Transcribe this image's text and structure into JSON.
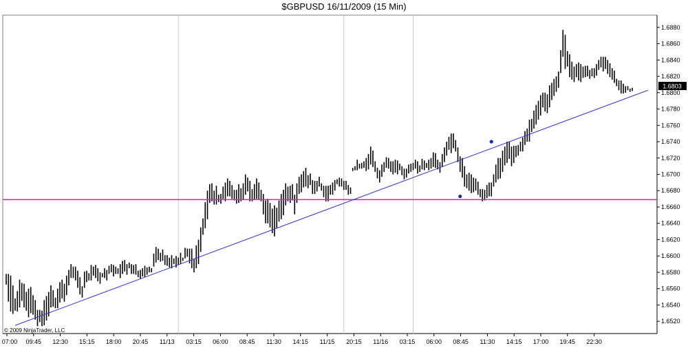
{
  "chart_data": {
    "type": "ohlc",
    "title": "$GBPUSD  16/11/2009 (15 Min)",
    "copyright": "© 2009 NinjaTrader, LLC",
    "ylim": [
      1.6505,
      1.6895
    ],
    "y_ticks": [
      "1.6520",
      "1.6540",
      "1.6560",
      "1.6580",
      "1.6600",
      "1.6620",
      "1.6640",
      "1.6660",
      "1.6680",
      "1.6700",
      "1.6720",
      "1.6740",
      "1.6760",
      "1.6780",
      "1.6800",
      "1.6820",
      "1.6840",
      "1.6860",
      "1.6880"
    ],
    "x_ticks": [
      "07:00",
      "09:45",
      "12:30",
      "15:15",
      "18:00",
      "20:45",
      "11/13",
      "03:15",
      "06:00",
      "08:45",
      "11:30",
      "14:15",
      "11/15",
      "20:15",
      "11/16",
      "03:15",
      "06:00",
      "08:45",
      "11:30",
      "14:15",
      "17:00",
      "19:45",
      "22:30"
    ],
    "last_price": "1.6803",
    "grid": "vertical day separators",
    "colors": {
      "bars": "#000000",
      "trendline": "#3333cc",
      "horizontal_line": "#e020c0",
      "markers": "#1a2e9e",
      "grid": "#c8c8c8"
    },
    "horizontal_line_value": 1.6669,
    "trendline": [
      [
        4,
        1.6515
      ],
      [
        287,
        1.6803
      ]
    ],
    "markers": [
      [
        203,
        1.6673
      ],
      [
        217,
        1.674
      ]
    ],
    "day_separators": [
      77,
      151,
      182
    ],
    "bar_ranges": [
      [
        1.6565,
        1.6578
      ],
      [
        1.6544,
        1.6578
      ],
      [
        1.6532,
        1.6576
      ],
      [
        1.6529,
        1.6564
      ],
      [
        1.6533,
        1.6548
      ],
      [
        1.6532,
        1.6557
      ],
      [
        1.6537,
        1.6571
      ],
      [
        1.6545,
        1.6567
      ],
      [
        1.6537,
        1.6566
      ],
      [
        1.6533,
        1.6556
      ],
      [
        1.6525,
        1.656
      ],
      [
        1.653,
        1.6562
      ],
      [
        1.6528,
        1.6552
      ],
      [
        1.6522,
        1.6546
      ],
      [
        1.6514,
        1.6534
      ],
      [
        1.6519,
        1.6534
      ],
      [
        1.6514,
        1.6533
      ],
      [
        1.6515,
        1.6546
      ],
      [
        1.6521,
        1.6551
      ],
      [
        1.6526,
        1.6556
      ],
      [
        1.6537,
        1.6564
      ],
      [
        1.6538,
        1.6558
      ],
      [
        1.6536,
        1.6549
      ],
      [
        1.6536,
        1.656
      ],
      [
        1.6543,
        1.6568
      ],
      [
        1.6548,
        1.6571
      ],
      [
        1.6544,
        1.6566
      ],
      [
        1.6552,
        1.6576
      ],
      [
        1.6564,
        1.6583
      ],
      [
        1.6573,
        1.659
      ],
      [
        1.6573,
        1.6587
      ],
      [
        1.657,
        1.6587
      ],
      [
        1.6561,
        1.6582
      ],
      [
        1.6553,
        1.6574
      ],
      [
        1.6549,
        1.6563
      ],
      [
        1.6561,
        1.6581
      ],
      [
        1.6568,
        1.6582
      ],
      [
        1.657,
        1.6579
      ],
      [
        1.657,
        1.6589
      ],
      [
        1.6576,
        1.6587
      ],
      [
        1.6573,
        1.6589
      ],
      [
        1.6569,
        1.6585
      ],
      [
        1.6566,
        1.658
      ],
      [
        1.6574,
        1.6579
      ],
      [
        1.6573,
        1.6585
      ],
      [
        1.657,
        1.6583
      ],
      [
        1.6578,
        1.6588
      ],
      [
        1.658,
        1.659
      ],
      [
        1.6575,
        1.6589
      ],
      [
        1.6578,
        1.6587
      ],
      [
        1.6578,
        1.6585
      ],
      [
        1.6573,
        1.659
      ],
      [
        1.6578,
        1.6594
      ],
      [
        1.6581,
        1.6595
      ],
      [
        1.6577,
        1.659
      ],
      [
        1.6585,
        1.6592
      ],
      [
        1.6578,
        1.659
      ],
      [
        1.6578,
        1.6589
      ],
      [
        1.6577,
        1.659
      ],
      [
        1.6574,
        1.6582
      ],
      [
        1.6572,
        1.6583
      ],
      [
        1.6575,
        1.6585
      ],
      [
        1.6574,
        1.6588
      ],
      [
        1.6577,
        1.6586
      ],
      [
        1.658,
        1.6587
      ],
      [
        1.658,
        1.6585
      ],
      [
        1.6587,
        1.6603
      ],
      [
        1.6592,
        1.6611
      ],
      [
        1.6595,
        1.6609
      ],
      [
        1.6593,
        1.6604
      ],
      [
        1.6594,
        1.6608
      ],
      [
        1.6589,
        1.6601
      ],
      [
        1.6588,
        1.6601
      ],
      [
        1.6586,
        1.6598
      ],
      [
        1.6585,
        1.6601
      ],
      [
        1.659,
        1.6597
      ],
      [
        1.6586,
        1.66
      ],
      [
        1.6589,
        1.6598
      ],
      [
        1.659,
        1.6604
      ],
      [
        1.6594,
        1.6598
      ],
      [
        1.6597,
        1.661
      ],
      [
        1.6599,
        1.6609
      ],
      [
        1.6591,
        1.6609
      ],
      [
        1.6585,
        1.6609
      ],
      [
        1.658,
        1.6596
      ],
      [
        1.6585,
        1.6613
      ],
      [
        1.659,
        1.662
      ],
      [
        1.6605,
        1.6635
      ],
      [
        1.6626,
        1.6646
      ],
      [
        1.6634,
        1.6666
      ],
      [
        1.6645,
        1.668
      ],
      [
        1.6665,
        1.6688
      ],
      [
        1.6667,
        1.6689
      ],
      [
        1.6663,
        1.668
      ],
      [
        1.6663,
        1.6686
      ],
      [
        1.6666,
        1.6675
      ],
      [
        1.6664,
        1.6676
      ],
      [
        1.667,
        1.6685
      ],
      [
        1.6667,
        1.669
      ],
      [
        1.6673,
        1.6695
      ],
      [
        1.6673,
        1.6692
      ],
      [
        1.667,
        1.6687
      ],
      [
        1.6668,
        1.6681
      ],
      [
        1.6664,
        1.6681
      ],
      [
        1.6665,
        1.6688
      ],
      [
        1.6667,
        1.6683
      ],
      [
        1.6669,
        1.6689
      ],
      [
        1.6675,
        1.67
      ],
      [
        1.6679,
        1.6696
      ],
      [
        1.6667,
        1.6692
      ],
      [
        1.6667,
        1.6682
      ],
      [
        1.6669,
        1.6688
      ],
      [
        1.667,
        1.6695
      ],
      [
        1.6669,
        1.669
      ],
      [
        1.6667,
        1.6681
      ],
      [
        1.6651,
        1.6676
      ],
      [
        1.664,
        1.6668
      ],
      [
        1.664,
        1.667
      ],
      [
        1.6635,
        1.6665
      ],
      [
        1.6628,
        1.6658
      ],
      [
        1.6624,
        1.6662
      ],
      [
        1.6634,
        1.6659
      ],
      [
        1.6642,
        1.6668
      ],
      [
        1.6645,
        1.6676
      ],
      [
        1.665,
        1.6681
      ],
      [
        1.6662,
        1.6689
      ],
      [
        1.6667,
        1.6685
      ],
      [
        1.6665,
        1.6686
      ],
      [
        1.6668,
        1.6688
      ],
      [
        1.6651,
        1.6675
      ],
      [
        1.6665,
        1.6689
      ],
      [
        1.6676,
        1.6697
      ],
      [
        1.6678,
        1.67
      ],
      [
        1.6684,
        1.6704
      ],
      [
        1.6685,
        1.6708
      ],
      [
        1.6683,
        1.6699
      ],
      [
        1.6687,
        1.6701
      ],
      [
        1.6676,
        1.6693
      ],
      [
        1.6676,
        1.6692
      ],
      [
        1.6679,
        1.6692
      ],
      [
        1.6685,
        1.6697
      ],
      [
        1.668,
        1.6689
      ],
      [
        1.6672,
        1.6686
      ],
      [
        1.6667,
        1.6686
      ],
      [
        1.6667,
        1.6686
      ],
      [
        1.6675,
        1.6687
      ],
      [
        1.6675,
        1.669
      ],
      [
        1.668,
        1.6693
      ],
      [
        1.6688,
        1.6694
      ],
      [
        1.6685,
        1.6696
      ],
      [
        1.6685,
        1.6695
      ],
      [
        1.6681,
        1.6692
      ],
      [
        1.6681,
        1.6692
      ],
      [
        1.6675,
        1.6687
      ],
      [
        1.6676,
        1.6684
      ],
      [
        1.6704,
        1.6708
      ],
      [
        1.6705,
        1.671
      ],
      [
        1.6705,
        1.6718
      ],
      [
        1.6707,
        1.6713
      ],
      [
        1.6707,
        1.6714
      ],
      [
        1.6708,
        1.6716
      ],
      [
        1.6704,
        1.672
      ],
      [
        1.6706,
        1.6725
      ],
      [
        1.6712,
        1.6734
      ],
      [
        1.6709,
        1.6729
      ],
      [
        1.6703,
        1.6716
      ],
      [
        1.6695,
        1.6708
      ],
      [
        1.669,
        1.6705
      ],
      [
        1.6697,
        1.6712
      ],
      [
        1.6703,
        1.6715
      ],
      [
        1.6708,
        1.6721
      ],
      [
        1.6707,
        1.672
      ],
      [
        1.6703,
        1.6716
      ],
      [
        1.67,
        1.6716
      ],
      [
        1.6702,
        1.6718
      ],
      [
        1.67,
        1.6717
      ],
      [
        1.6705,
        1.6713
      ],
      [
        1.6699,
        1.671
      ],
      [
        1.6694,
        1.6707
      ],
      [
        1.6696,
        1.6707
      ],
      [
        1.6701,
        1.6712
      ],
      [
        1.6703,
        1.6713
      ],
      [
        1.6705,
        1.6714
      ],
      [
        1.6707,
        1.6718
      ],
      [
        1.6701,
        1.6716
      ],
      [
        1.6703,
        1.6711
      ],
      [
        1.6706,
        1.6719
      ],
      [
        1.6705,
        1.6717
      ],
      [
        1.6708,
        1.6714
      ],
      [
        1.6705,
        1.6718
      ],
      [
        1.6707,
        1.672
      ],
      [
        1.6709,
        1.6727
      ],
      [
        1.6708,
        1.6726
      ],
      [
        1.6706,
        1.6718
      ],
      [
        1.6702,
        1.6715
      ],
      [
        1.6709,
        1.6725
      ],
      [
        1.6715,
        1.6733
      ],
      [
        1.6723,
        1.674
      ],
      [
        1.673,
        1.6746
      ],
      [
        1.6726,
        1.675
      ],
      [
        1.6732,
        1.675
      ],
      [
        1.6728,
        1.6742
      ],
      [
        1.6715,
        1.6733
      ],
      [
        1.6703,
        1.6722
      ],
      [
        1.6696,
        1.672
      ],
      [
        1.6685,
        1.671
      ],
      [
        1.6683,
        1.67
      ],
      [
        1.668,
        1.6702
      ],
      [
        1.6677,
        1.67
      ],
      [
        1.6678,
        1.6696
      ],
      [
        1.668,
        1.6695
      ],
      [
        1.6675,
        1.6691
      ],
      [
        1.6672,
        1.6682
      ],
      [
        1.6667,
        1.6682
      ],
      [
        1.6668,
        1.6681
      ],
      [
        1.6671,
        1.6687
      ],
      [
        1.6673,
        1.669
      ],
      [
        1.6673,
        1.669
      ],
      [
        1.6685,
        1.67
      ],
      [
        1.669,
        1.6712
      ],
      [
        1.6694,
        1.672
      ],
      [
        1.6695,
        1.672
      ],
      [
        1.6703,
        1.6729
      ],
      [
        1.6711,
        1.6734
      ],
      [
        1.6714,
        1.674
      ],
      [
        1.6719,
        1.674
      ],
      [
        1.671,
        1.6734
      ],
      [
        1.6714,
        1.6735
      ],
      [
        1.6721,
        1.6735
      ],
      [
        1.6723,
        1.6736
      ],
      [
        1.6728,
        1.674
      ],
      [
        1.6728,
        1.6745
      ],
      [
        1.6736,
        1.6753
      ],
      [
        1.674,
        1.6756
      ],
      [
        1.674,
        1.6767
      ],
      [
        1.6752,
        1.6768
      ],
      [
        1.6756,
        1.6778
      ],
      [
        1.6761,
        1.6785
      ],
      [
        1.6767,
        1.679
      ],
      [
        1.6772,
        1.6797
      ],
      [
        1.6782,
        1.68
      ],
      [
        1.6777,
        1.68
      ],
      [
        1.6775,
        1.6798
      ],
      [
        1.6782,
        1.6809
      ],
      [
        1.6791,
        1.6812
      ],
      [
        1.6796,
        1.6817
      ],
      [
        1.6801,
        1.682
      ],
      [
        1.6806,
        1.6826
      ],
      [
        1.6824,
        1.6852
      ],
      [
        1.6844,
        1.6877
      ],
      [
        1.6829,
        1.6871
      ],
      [
        1.6832,
        1.6851
      ],
      [
        1.6819,
        1.6847
      ],
      [
        1.6816,
        1.6838
      ],
      [
        1.6813,
        1.6832
      ],
      [
        1.6819,
        1.6835
      ],
      [
        1.6815,
        1.6837
      ],
      [
        1.6813,
        1.6835
      ],
      [
        1.6818,
        1.6832
      ],
      [
        1.6819,
        1.6833
      ],
      [
        1.682,
        1.6833
      ],
      [
        1.6817,
        1.6828
      ],
      [
        1.682,
        1.683
      ],
      [
        1.6818,
        1.683
      ],
      [
        1.6821,
        1.6835
      ],
      [
        1.6828,
        1.684
      ],
      [
        1.6831,
        1.6844
      ],
      [
        1.6826,
        1.6844
      ],
      [
        1.6829,
        1.6844
      ],
      [
        1.6823,
        1.684
      ],
      [
        1.6819,
        1.6836
      ],
      [
        1.6816,
        1.683
      ],
      [
        1.6812,
        1.6827
      ],
      [
        1.6808,
        1.6817
      ],
      [
        1.6803,
        1.6815
      ],
      [
        1.6799,
        1.6815
      ],
      [
        1.6799,
        1.6811
      ],
      [
        1.68,
        1.6808
      ],
      [
        1.6803,
        1.6808
      ],
      [
        1.6801,
        1.6805
      ],
      [
        1.6802,
        1.6806
      ]
    ]
  }
}
